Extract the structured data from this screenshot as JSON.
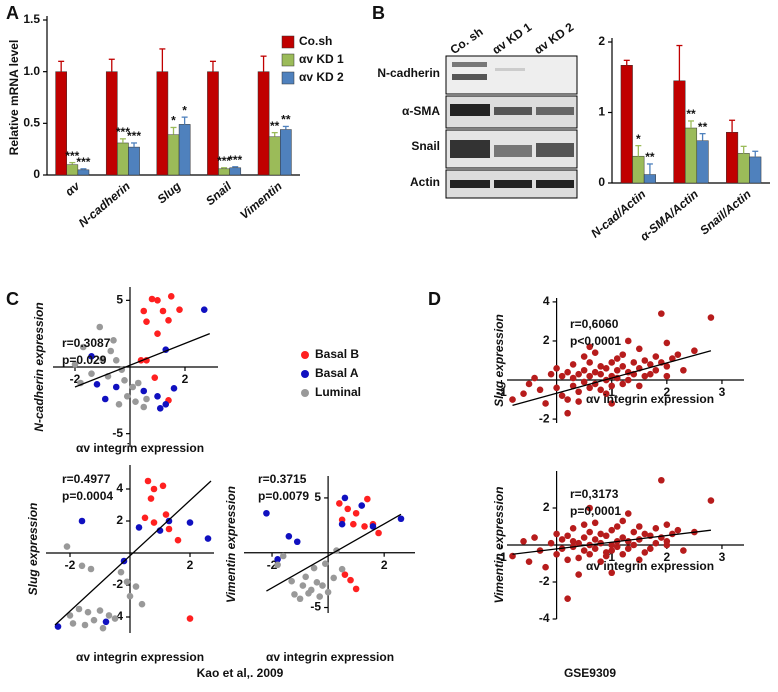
{
  "panel_labels": [
    "A",
    "B",
    "C",
    "D"
  ],
  "western_blot": {
    "columns": [
      "Co. sh",
      "αv KD 1",
      "αv KD 2"
    ],
    "rows": [
      "N-cadherin",
      "α-SMA",
      "Snail",
      "Actin"
    ]
  },
  "captions": [
    "Kao et al,. 2009",
    "GSE9309"
  ],
  "chart_data": [
    {
      "type": "bar",
      "ylabel": "Relative mRNA level",
      "categories": [
        "αv",
        "N-cadherin",
        "Slug",
        "Snail",
        "Vimentin"
      ],
      "ylim": [
        0,
        1.5
      ],
      "yticks": [
        0,
        {
          "value": 0.5,
          "label": "0.5"
        },
        {
          "value": 1,
          "label": "1.0"
        },
        {
          "value": 1.5,
          "label": "1.5"
        }
      ],
      "legend": "top-right",
      "series": [
        {
          "name": "Co.sh",
          "color": "#c00000",
          "values": [
            1,
            1,
            1,
            1,
            1
          ],
          "errors": [
            0.1,
            0.12,
            0.22,
            0.1,
            0.15
          ]
        },
        {
          "name": "αv KD 1",
          "color": "#9bbb59",
          "values": [
            0.1,
            0.31,
            0.39,
            0.06,
            0.37
          ],
          "errors": [
            0.02,
            0.04,
            0.07,
            0.01,
            0.04
          ],
          "significance": [
            "***",
            "***",
            "*",
            "***",
            "**"
          ]
        },
        {
          "name": "αv KD 2",
          "color": "#4f81bd",
          "values": [
            0.05,
            0.27,
            0.49,
            0.07,
            0.44
          ],
          "errors": [
            0.01,
            0.04,
            0.07,
            0.01,
            0.03
          ],
          "significance": [
            "***",
            "***",
            "*",
            "***",
            "**"
          ]
        }
      ]
    },
    {
      "type": "bar",
      "categories": [
        "N-cad/Actin",
        "α-SMA/Actin",
        "Snail/Actin"
      ],
      "ylim": [
        0,
        2
      ],
      "yticks": [
        0,
        1,
        2
      ],
      "series": [
        {
          "color": "#c00000",
          "values": [
            1.67,
            1.45,
            0.72
          ],
          "errors": [
            0.07,
            0.5,
            0.17
          ]
        },
        {
          "color": "#9bbb59",
          "values": [
            0.38,
            0.78,
            0.42
          ],
          "errors": [
            0.15,
            0.1,
            0.1
          ],
          "significance": [
            "*",
            "**",
            null
          ]
        },
        {
          "color": "#4f81bd",
          "values": [
            0.12,
            0.6,
            0.37
          ],
          "errors": [
            0.15,
            0.1,
            0.08
          ],
          "significance": [
            "**",
            "**",
            null
          ]
        }
      ]
    },
    {
      "type": "scatter",
      "annotations": [
        "r=0.3087",
        "p=0.029"
      ],
      "xlabel": "αv integrin expression",
      "ylabel": "N-cadherin expression",
      "xlim": [
        -2.8,
        3.2
      ],
      "ylim": [
        -6,
        6
      ],
      "xticks": [
        -2,
        2
      ],
      "yticks": [
        5,
        -5
      ],
      "legend": "right",
      "fit": {
        "x": [
          -2,
          2.9
        ],
        "y": [
          -1.5,
          2.5
        ]
      },
      "series": [
        {
          "name": "Basal B",
          "color": "#ff2020",
          "x": [
            0.5,
            1.0,
            1.5,
            0.8,
            1.2,
            1.8,
            0.6,
            1.0,
            1.4,
            0.4,
            0.6,
            0.9,
            1.4
          ],
          "y": [
            4.2,
            5,
            5.3,
            5.1,
            4.2,
            4.3,
            3.4,
            2.5,
            3.5,
            0.5,
            0.5,
            -0.8,
            -2.5
          ]
        },
        {
          "name": "Basal A",
          "color": "#1010c0",
          "x": [
            2.7,
            1.3,
            -1.4,
            -1.2,
            -0.9,
            -0.5,
            1.0,
            1.3,
            1.6,
            1.1,
            0.5
          ],
          "y": [
            4.3,
            1.3,
            0.8,
            -1.3,
            -2.4,
            -1.5,
            -2.2,
            -2.8,
            -1.6,
            -3.1,
            -1.8
          ]
        },
        {
          "name": "Luminal",
          "color": "#999999",
          "x": [
            -1.7,
            -2.0,
            -1.4,
            -1.0,
            -0.7,
            -0.5,
            -0.3,
            -1.8,
            -0.2,
            0.1,
            -0.1,
            0.2,
            0.5,
            -0.4,
            0.3,
            -0.6,
            -0.8,
            0.6,
            -1.1
          ],
          "y": [
            1.5,
            0.2,
            -0.5,
            0.6,
            1.2,
            0.5,
            -0.2,
            -1.2,
            -1.0,
            -1.5,
            -2.2,
            -2.6,
            -3.0,
            -2.8,
            -1.2,
            2.0,
            -0.7,
            -2.4,
            3.0
          ]
        }
      ]
    },
    {
      "type": "scatter",
      "annotations": [
        "r=0.4977",
        "p=0.0004"
      ],
      "xlabel": "αv integrin expression",
      "ylabel": "Slug expression",
      "xlim": [
        -2.8,
        2.8
      ],
      "ylim": [
        -5,
        5.5
      ],
      "xticks": [
        -2,
        2
      ],
      "yticks": [
        4,
        2,
        -2,
        -4
      ],
      "fit": {
        "x": [
          -2.5,
          2.7
        ],
        "y": [
          -4.5,
          4.5
        ]
      },
      "series": [
        {
          "color": "#ff2020",
          "x": [
            0.6,
            0.8,
            1.1,
            0.7,
            0.5,
            1.2,
            0.8,
            1.3,
            1.6,
            2.0
          ],
          "y": [
            4.5,
            4.0,
            4.2,
            3.4,
            2.2,
            2.4,
            1.9,
            1.5,
            0.8,
            -4.1
          ]
        },
        {
          "color": "#1010c0",
          "x": [
            -1.6,
            0.3,
            1.0,
            1.3,
            2.0,
            2.6,
            -0.2,
            -2.4,
            -0.8
          ],
          "y": [
            2.0,
            1.6,
            1.4,
            2.0,
            1.9,
            0.9,
            -0.5,
            -4.6,
            -4.3
          ]
        },
        {
          "color": "#999999",
          "x": [
            -1.6,
            -2.1,
            -1.3,
            -0.3,
            -0.1,
            0.2,
            0.0,
            -1.7,
            -1.4,
            -1.0,
            -0.7,
            -1.5,
            -1.2,
            -0.9,
            0.4,
            -0.5,
            -2.0,
            -1.9
          ],
          "y": [
            -0.8,
            0.4,
            -1.0,
            -1.2,
            -1.8,
            -2.1,
            -2.7,
            -3.5,
            -3.7,
            -3.6,
            -3.9,
            -4.5,
            -4.2,
            -4.7,
            -3.2,
            -4.1,
            -3.9,
            -4.4
          ]
        }
      ]
    },
    {
      "type": "scatter",
      "annotations": [
        "r=0.3715",
        "p=0.0079"
      ],
      "xlabel": "αv integrin expression",
      "ylabel": "Vimentin expression",
      "xlim": [
        -3,
        3.1
      ],
      "ylim": [
        -5.5,
        7
      ],
      "xticks": [
        -2,
        2
      ],
      "yticks": [
        5,
        -5
      ],
      "fit": {
        "x": [
          -2.2,
          2.6
        ],
        "y": [
          -3.5,
          3.5
        ]
      },
      "series": [
        {
          "color": "#ff2020",
          "x": [
            0.4,
            0.7,
            1.0,
            1.4,
            0.9,
            1.3,
            1.6,
            1.8,
            0.5,
            0.6,
            0.8,
            1.0
          ],
          "y": [
            4.5,
            4.0,
            3.6,
            4.9,
            2.6,
            2.4,
            2.6,
            1.8,
            3.0,
            -2.0,
            -2.5,
            -3.3
          ]
        },
        {
          "color": "#1010c0",
          "x": [
            -2.2,
            0.6,
            1.2,
            2.6,
            1.6,
            -1.8,
            -1.1,
            -1.4,
            0.5
          ],
          "y": [
            3.6,
            5.0,
            4.3,
            3.1,
            2.4,
            -0.6,
            1.0,
            1.5,
            2.6
          ]
        },
        {
          "color": "#999999",
          "x": [
            -1.6,
            -1.8,
            -0.5,
            -0.8,
            -0.4,
            -0.9,
            -0.2,
            -0.6,
            0.0,
            -1.2,
            -0.7,
            -0.3,
            -1.0,
            -0.1,
            0.5,
            0.3,
            -1.3,
            0.2
          ],
          "y": [
            -0.3,
            -1.1,
            -1.4,
            -2.2,
            -2.7,
            -3.0,
            -3.0,
            -3.4,
            -3.6,
            -3.8,
            -3.7,
            -4.0,
            -4.2,
            -1.0,
            -1.5,
            0.2,
            -2.6,
            -2.3
          ]
        }
      ]
    },
    {
      "type": "scatter",
      "annotations": [
        "r=0,6060",
        "p<0,0001"
      ],
      "xlabel": "αv integrin expression",
      "ylabel": "Slug expression",
      "xlim": [
        -0.9,
        3.4
      ],
      "ylim": [
        -2.2,
        4.2
      ],
      "xticks": [
        -1,
        1,
        2,
        3
      ],
      "yticks": [
        4,
        2,
        -2
      ],
      "fit": {
        "x": [
          -0.8,
          2.8
        ],
        "y": [
          -1.3,
          1.5
        ]
      },
      "series": [
        {
          "color": "#b71c1c",
          "x": [
            -0.8,
            -0.6,
            -0.5,
            -0.4,
            -0.3,
            -0.2,
            -0.1,
            0,
            0,
            0.1,
            0.1,
            0.2,
            0.2,
            0.3,
            0.3,
            0.3,
            0.4,
            0.4,
            0.5,
            0.5,
            0.5,
            0.6,
            0.6,
            0.6,
            0.7,
            0.7,
            0.7,
            0.8,
            0.8,
            0.8,
            0.9,
            0.9,
            0.9,
            1.0,
            1.0,
            1.0,
            1.1,
            1.1,
            1.1,
            1.2,
            1.2,
            1.2,
            1.3,
            1.3,
            1.4,
            1.4,
            1.5,
            1.5,
            1.6,
            1.6,
            1.7,
            1.7,
            1.8,
            1.8,
            1.9,
            2.0,
            2.0,
            2.1,
            2.2,
            2.3,
            2.5,
            2.8,
            1.9,
            0.2,
            0.4,
            1.0,
            1.3,
            0.6,
            1.5,
            2.0
          ],
          "y": [
            -1.0,
            -0.7,
            -0.2,
            0.1,
            -0.5,
            -1.2,
            0.3,
            -0.4,
            0.6,
            -0.8,
            0.2,
            -1.0,
            0.4,
            -0.3,
            0.1,
            0.8,
            -0.6,
            0.3,
            -0.1,
            0.5,
            1.2,
            -0.4,
            0.2,
            0.9,
            -0.2,
            0.4,
            1.4,
            -0.5,
            0.3,
            0.7,
            0.0,
            0.6,
            -0.7,
            0.2,
            0.9,
            -0.3,
            0.5,
            1.1,
            0.1,
            -0.2,
            0.7,
            1.3,
            0.4,
            0.0,
            0.9,
            0.3,
            1.6,
            0.6,
            0.2,
            1.0,
            0.8,
            0.3,
            1.2,
            0.5,
            0.9,
            1.9,
            0.7,
            1.1,
            1.3,
            0.5,
            1.5,
            3.2,
            3.4,
            -1.7,
            -1.1,
            -1.2,
            2.0,
            1.7,
            -0.3,
            0.2
          ]
        }
      ]
    },
    {
      "type": "scatter",
      "annotations": [
        "r=0,3173",
        "p=0,0001"
      ],
      "xlabel": "αv integrin expression",
      "ylabel": "Vimentin expression",
      "xlim": [
        -0.9,
        3.4
      ],
      "ylim": [
        -4,
        4
      ],
      "xticks": [
        -1,
        1,
        2,
        3
      ],
      "yticks": [
        2,
        -2,
        -4
      ],
      "fit": {
        "x": [
          -0.8,
          2.8
        ],
        "y": [
          -0.5,
          0.8
        ]
      },
      "series": [
        {
          "color": "#b71c1c",
          "x": [
            -0.8,
            -0.6,
            -0.5,
            -0.4,
            -0.3,
            -0.2,
            -0.1,
            0,
            0,
            0.1,
            0.1,
            0.2,
            0.2,
            0.3,
            0.3,
            0.3,
            0.4,
            0.4,
            0.5,
            0.5,
            0.5,
            0.6,
            0.6,
            0.6,
            0.7,
            0.7,
            0.7,
            0.8,
            0.8,
            0.8,
            0.9,
            0.9,
            0.9,
            1.0,
            1.0,
            1.0,
            1.1,
            1.1,
            1.1,
            1.2,
            1.2,
            1.2,
            1.3,
            1.3,
            1.4,
            1.4,
            1.5,
            1.5,
            1.6,
            1.6,
            1.7,
            1.7,
            1.8,
            1.8,
            1.9,
            2.0,
            2.0,
            2.1,
            2.2,
            2.3,
            2.5,
            2.8,
            1.9,
            0.2,
            0.4,
            1.0,
            1.3,
            0.6,
            1.5,
            2.0
          ],
          "y": [
            -0.6,
            0.2,
            -0.9,
            0.4,
            -0.3,
            -1.2,
            0.1,
            -0.5,
            0.6,
            -0.2,
            0.3,
            -0.8,
            0.5,
            -0.1,
            0.2,
            0.9,
            -0.7,
            0.1,
            -0.3,
            0.4,
            1.1,
            -0.5,
            0.0,
            0.7,
            -0.2,
            0.3,
            1.2,
            -0.9,
            0.1,
            0.6,
            -0.4,
            0.5,
            -0.6,
            0.0,
            0.8,
            -0.3,
            0.2,
            1.0,
            -0.1,
            -0.5,
            0.4,
            1.3,
            0.2,
            -0.2,
            0.7,
            0.0,
            1.0,
            0.3,
            -0.4,
            0.6,
            0.5,
            -0.2,
            0.9,
            0.1,
            0.4,
            1.1,
            0.2,
            0.6,
            0.8,
            -0.3,
            0.7,
            2.4,
            3.5,
            -2.9,
            -1.6,
            -1.5,
            1.7,
            2.0,
            -0.8,
            0.0
          ]
        }
      ]
    }
  ]
}
